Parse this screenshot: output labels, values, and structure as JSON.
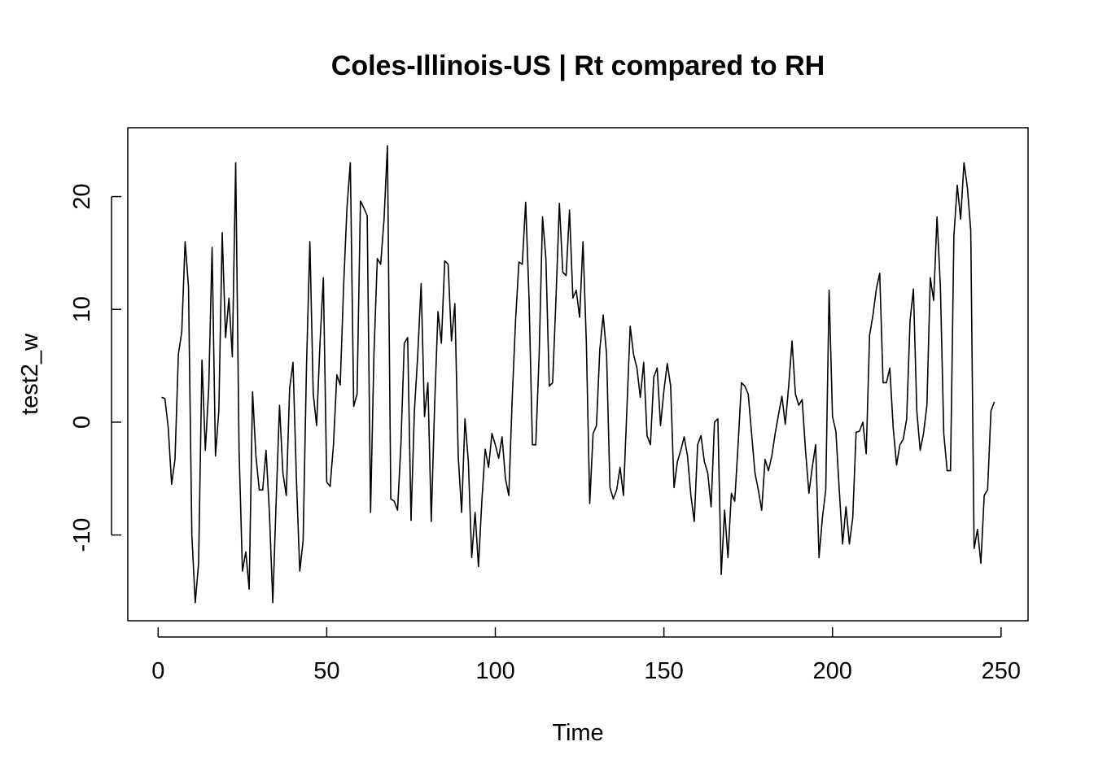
{
  "chart_data": {
    "type": "line",
    "title": "Coles-Illinois-US | Rt compared to RH",
    "xlabel": "Time",
    "ylabel": "test2_w",
    "xlim": [
      -9,
      258
    ],
    "ylim": [
      -17.6,
      26.1
    ],
    "xticks": [
      0,
      50,
      100,
      150,
      200,
      250
    ],
    "xtick_labels": [
      "0",
      "50",
      "100",
      "150",
      "200",
      "250"
    ],
    "yticks": [
      -10,
      0,
      10,
      20
    ],
    "ytick_labels": [
      "-10",
      "0",
      "10",
      "20"
    ],
    "grid": false,
    "series": [
      {
        "x_start": 1,
        "values": [
          2.2,
          2.1,
          -0.5,
          -5.5,
          -3.3,
          6.0,
          8.0,
          16.0,
          12.0,
          -10.0,
          -16.0,
          -12.5,
          5.5,
          -2.5,
          3.0,
          15.5,
          -3.0,
          1.0,
          16.8,
          7.5,
          11.0,
          5.8,
          23.0,
          -2.5,
          -13.2,
          -11.5,
          -14.8,
          2.7,
          -3.0,
          -6.0,
          -6.0,
          -2.5,
          -8.0,
          -16.0,
          -7.0,
          1.5,
          -4.5,
          -6.5,
          3.0,
          5.3,
          -5.0,
          -13.2,
          -10.5,
          5.0,
          16.0,
          2.5,
          -0.3,
          7.0,
          12.8,
          -5.3,
          -5.7,
          -2.0,
          4.2,
          3.3,
          12.0,
          19.0,
          23.0,
          1.4,
          2.5,
          19.6,
          19.0,
          18.3,
          -8.0,
          6.0,
          14.5,
          14.0,
          18.0,
          24.5,
          -6.8,
          -7.0,
          -7.8,
          -2.0,
          7.0,
          7.5,
          -8.7,
          1.0,
          6.0,
          12.3,
          0.5,
          3.5,
          -8.8,
          1.5,
          9.8,
          7.0,
          14.3,
          14.0,
          7.2,
          10.5,
          -3.0,
          -8.0,
          0.3,
          -3.5,
          -12.0,
          -8.0,
          -12.8,
          -7.0,
          -2.4,
          -4.0,
          -1.0,
          -2.0,
          -3.2,
          -1.3,
          -5.0,
          -6.5,
          2.0,
          9.0,
          14.2,
          14.0,
          19.5,
          11.0,
          -2.0,
          -2.0,
          6.0,
          18.2,
          14.5,
          3.2,
          3.5,
          11.0,
          19.4,
          13.3,
          13.0,
          18.8,
          11.0,
          11.7,
          9.3,
          16.0,
          7.0,
          -7.2,
          -1.0,
          -0.3,
          6.5,
          9.5,
          6.0,
          -5.8,
          -6.8,
          -6.0,
          -4.0,
          -6.5,
          1.0,
          8.5,
          6.0,
          4.8,
          2.2,
          5.3,
          -1.2,
          -2.0,
          4.0,
          4.8,
          -0.3,
          2.8,
          5.2,
          3.2,
          -5.8,
          -3.5,
          -2.5,
          -1.3,
          -3.0,
          -6.5,
          -8.8,
          -2.0,
          -1.2,
          -3.5,
          -4.5,
          -7.5,
          0.0,
          0.3,
          -13.5,
          -7.8,
          -12.0,
          -6.3,
          -7.0,
          -2.0,
          3.5,
          3.2,
          2.5,
          -1.0,
          -4.5,
          -6.0,
          -7.8,
          -3.3,
          -4.3,
          -3.0,
          -1.0,
          0.7,
          2.3,
          -0.2,
          3.2,
          7.2,
          2.5,
          1.5,
          2.0,
          -2.5,
          -6.3,
          -4.0,
          -2.0,
          -12.0,
          -8.5,
          -6.0,
          11.7,
          0.5,
          -0.8,
          -6.0,
          -10.8,
          -7.5,
          -10.8,
          -8.5,
          -0.9,
          -0.8,
          0.0,
          -2.8,
          7.7,
          9.5,
          11.8,
          13.2,
          3.5,
          3.5,
          4.8,
          -0.5,
          -3.8,
          -2.0,
          -1.5,
          0.3,
          9.0,
          11.8,
          1.0,
          -2.5,
          -1.0,
          1.5,
          12.8,
          10.8,
          18.2,
          12.0,
          -1.0,
          -4.3,
          -4.3,
          16.5,
          21.0,
          18.0,
          23.0,
          20.8,
          17.0,
          -11.2,
          -9.5,
          -12.5,
          -6.5,
          -6.0,
          1.0,
          1.8
        ]
      }
    ]
  }
}
